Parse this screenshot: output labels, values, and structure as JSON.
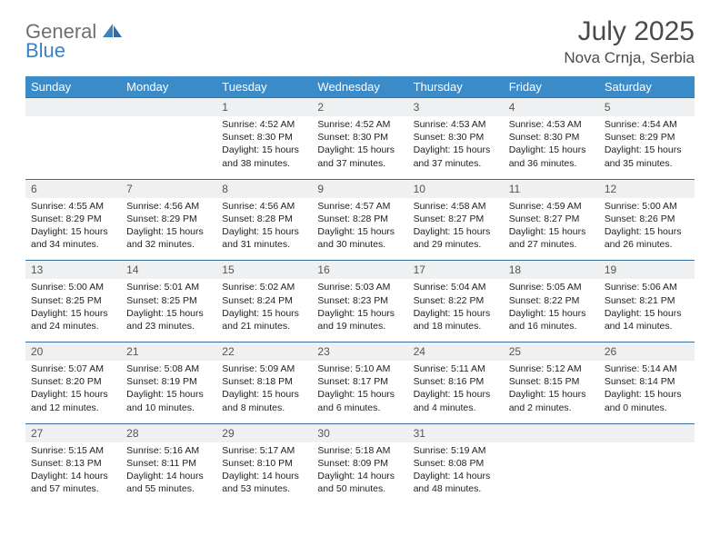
{
  "brand": {
    "word1": "General",
    "word2": "Blue"
  },
  "title": "July 2025",
  "location": "Nova Crnja, Serbia",
  "colors": {
    "header_bg": "#3b8bc9",
    "header_text": "#ffffff",
    "daynum_bg": "#eef0f1",
    "row_divider": "#3b6fa0",
    "logo_gray": "#6f6f6f",
    "logo_blue": "#3b82c4",
    "page_bg": "#ffffff"
  },
  "day_names": [
    "Sunday",
    "Monday",
    "Tuesday",
    "Wednesday",
    "Thursday",
    "Friday",
    "Saturday"
  ],
  "weeks": [
    [
      null,
      null,
      {
        "n": "1",
        "sr": "4:52 AM",
        "ss": "8:30 PM",
        "dl": "15 hours and 38 minutes."
      },
      {
        "n": "2",
        "sr": "4:52 AM",
        "ss": "8:30 PM",
        "dl": "15 hours and 37 minutes."
      },
      {
        "n": "3",
        "sr": "4:53 AM",
        "ss": "8:30 PM",
        "dl": "15 hours and 37 minutes."
      },
      {
        "n": "4",
        "sr": "4:53 AM",
        "ss": "8:30 PM",
        "dl": "15 hours and 36 minutes."
      },
      {
        "n": "5",
        "sr": "4:54 AM",
        "ss": "8:29 PM",
        "dl": "15 hours and 35 minutes."
      }
    ],
    [
      {
        "n": "6",
        "sr": "4:55 AM",
        "ss": "8:29 PM",
        "dl": "15 hours and 34 minutes."
      },
      {
        "n": "7",
        "sr": "4:56 AM",
        "ss": "8:29 PM",
        "dl": "15 hours and 32 minutes."
      },
      {
        "n": "8",
        "sr": "4:56 AM",
        "ss": "8:28 PM",
        "dl": "15 hours and 31 minutes."
      },
      {
        "n": "9",
        "sr": "4:57 AM",
        "ss": "8:28 PM",
        "dl": "15 hours and 30 minutes."
      },
      {
        "n": "10",
        "sr": "4:58 AM",
        "ss": "8:27 PM",
        "dl": "15 hours and 29 minutes."
      },
      {
        "n": "11",
        "sr": "4:59 AM",
        "ss": "8:27 PM",
        "dl": "15 hours and 27 minutes."
      },
      {
        "n": "12",
        "sr": "5:00 AM",
        "ss": "8:26 PM",
        "dl": "15 hours and 26 minutes."
      }
    ],
    [
      {
        "n": "13",
        "sr": "5:00 AM",
        "ss": "8:25 PM",
        "dl": "15 hours and 24 minutes."
      },
      {
        "n": "14",
        "sr": "5:01 AM",
        "ss": "8:25 PM",
        "dl": "15 hours and 23 minutes."
      },
      {
        "n": "15",
        "sr": "5:02 AM",
        "ss": "8:24 PM",
        "dl": "15 hours and 21 minutes."
      },
      {
        "n": "16",
        "sr": "5:03 AM",
        "ss": "8:23 PM",
        "dl": "15 hours and 19 minutes."
      },
      {
        "n": "17",
        "sr": "5:04 AM",
        "ss": "8:22 PM",
        "dl": "15 hours and 18 minutes."
      },
      {
        "n": "18",
        "sr": "5:05 AM",
        "ss": "8:22 PM",
        "dl": "15 hours and 16 minutes."
      },
      {
        "n": "19",
        "sr": "5:06 AM",
        "ss": "8:21 PM",
        "dl": "15 hours and 14 minutes."
      }
    ],
    [
      {
        "n": "20",
        "sr": "5:07 AM",
        "ss": "8:20 PM",
        "dl": "15 hours and 12 minutes."
      },
      {
        "n": "21",
        "sr": "5:08 AM",
        "ss": "8:19 PM",
        "dl": "15 hours and 10 minutes."
      },
      {
        "n": "22",
        "sr": "5:09 AM",
        "ss": "8:18 PM",
        "dl": "15 hours and 8 minutes."
      },
      {
        "n": "23",
        "sr": "5:10 AM",
        "ss": "8:17 PM",
        "dl": "15 hours and 6 minutes."
      },
      {
        "n": "24",
        "sr": "5:11 AM",
        "ss": "8:16 PM",
        "dl": "15 hours and 4 minutes."
      },
      {
        "n": "25",
        "sr": "5:12 AM",
        "ss": "8:15 PM",
        "dl": "15 hours and 2 minutes."
      },
      {
        "n": "26",
        "sr": "5:14 AM",
        "ss": "8:14 PM",
        "dl": "15 hours and 0 minutes."
      }
    ],
    [
      {
        "n": "27",
        "sr": "5:15 AM",
        "ss": "8:13 PM",
        "dl": "14 hours and 57 minutes."
      },
      {
        "n": "28",
        "sr": "5:16 AM",
        "ss": "8:11 PM",
        "dl": "14 hours and 55 minutes."
      },
      {
        "n": "29",
        "sr": "5:17 AM",
        "ss": "8:10 PM",
        "dl": "14 hours and 53 minutes."
      },
      {
        "n": "30",
        "sr": "5:18 AM",
        "ss": "8:09 PM",
        "dl": "14 hours and 50 minutes."
      },
      {
        "n": "31",
        "sr": "5:19 AM",
        "ss": "8:08 PM",
        "dl": "14 hours and 48 minutes."
      },
      null,
      null
    ]
  ],
  "labels": {
    "sunrise": "Sunrise: ",
    "sunset": "Sunset: ",
    "daylight": "Daylight: "
  }
}
